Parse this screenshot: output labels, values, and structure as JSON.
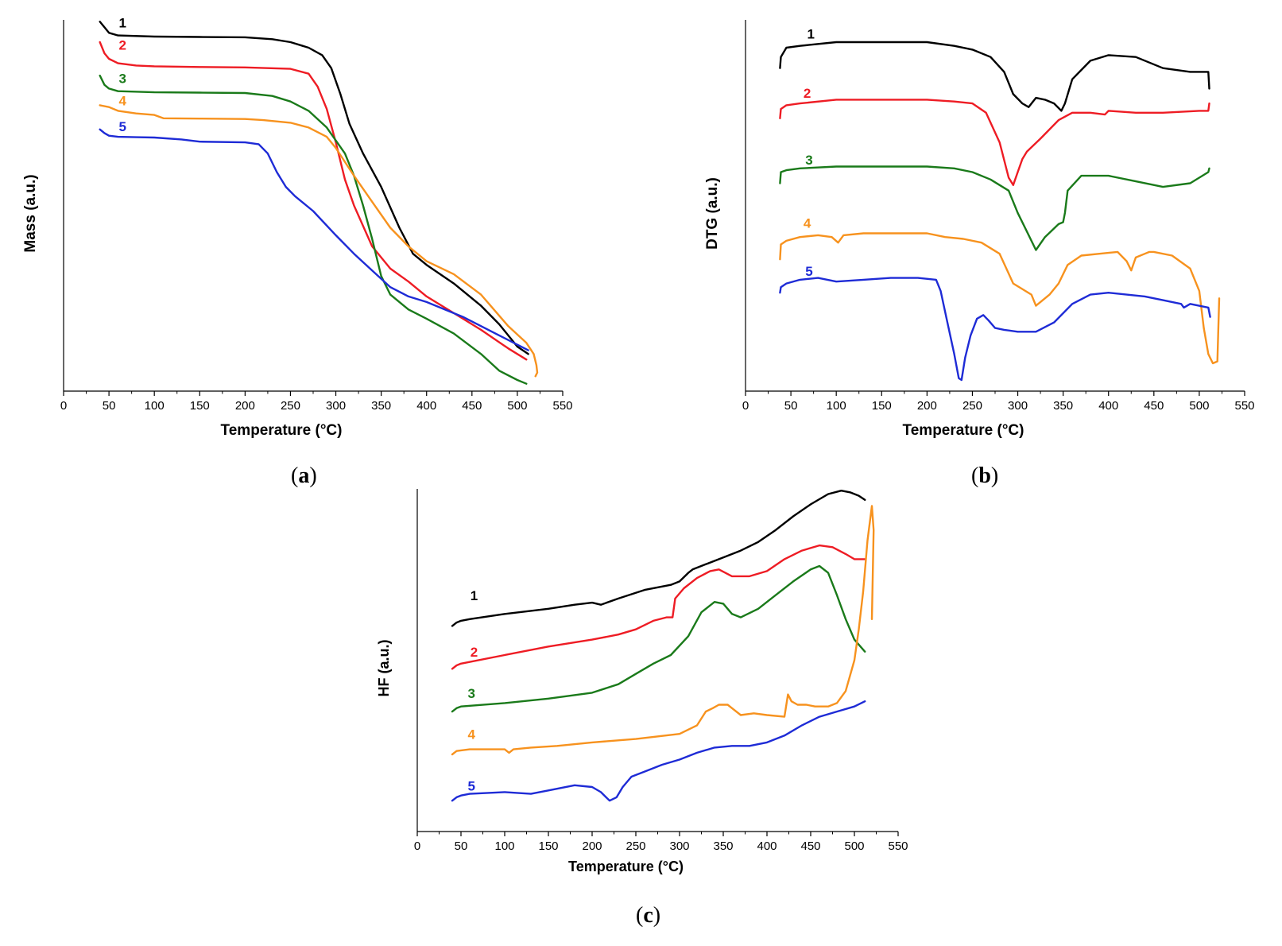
{
  "colors": {
    "1": "#000000",
    "2": "#ee1c24",
    "3": "#1a7a1a",
    "4": "#f7921e",
    "5": "#1e2bd6"
  },
  "chart_data": [
    {
      "id": "a",
      "type": "line",
      "panel_label": "a",
      "xlabel": "Temperature (°C)",
      "ylabel": "Mass (a.u.)",
      "xlim": [
        0,
        550
      ],
      "xticks": [
        0,
        50,
        100,
        150,
        200,
        250,
        300,
        350,
        400,
        450,
        500,
        550
      ],
      "ylim": [
        0,
        100
      ],
      "series": [
        {
          "name": "1",
          "label_at": [
            65,
            98
          ],
          "x": [
            40,
            45,
            50,
            60,
            100,
            150,
            200,
            230,
            250,
            270,
            285,
            295,
            305,
            315,
            330,
            350,
            370,
            385,
            400,
            430,
            460,
            480,
            500,
            512
          ],
          "y": [
            99.5,
            98,
            96.5,
            95.8,
            95.5,
            95.4,
            95.3,
            94.8,
            94,
            92.5,
            90.5,
            87,
            80,
            72,
            64,
            55,
            44,
            37,
            34,
            29,
            23,
            18,
            12,
            10
          ]
        },
        {
          "name": "2",
          "label_at": [
            65,
            92
          ],
          "x": [
            40,
            45,
            50,
            60,
            80,
            100,
            150,
            200,
            250,
            270,
            280,
            290,
            300,
            310,
            320,
            340,
            360,
            380,
            400,
            430,
            460,
            490,
            510
          ],
          "y": [
            94,
            91,
            89.5,
            88.3,
            87.7,
            87.5,
            87.3,
            87.2,
            86.8,
            85.5,
            82,
            76,
            67,
            57,
            50,
            39,
            33,
            29.5,
            25.5,
            21,
            16.5,
            11.5,
            8.5
          ]
        },
        {
          "name": "3",
          "label_at": [
            65,
            83
          ],
          "x": [
            40,
            45,
            50,
            60,
            100,
            150,
            200,
            230,
            250,
            270,
            290,
            310,
            320,
            330,
            340,
            350,
            360,
            380,
            400,
            430,
            460,
            480,
            500,
            510
          ],
          "y": [
            85,
            82.5,
            81.5,
            80.8,
            80.5,
            80.4,
            80.3,
            79.5,
            78,
            75.5,
            71,
            64,
            58,
            50,
            41,
            31,
            26,
            22,
            19.5,
            15.5,
            10,
            5.5,
            3,
            2
          ]
        },
        {
          "name": "4",
          "label_at": [
            65,
            77
          ],
          "x": [
            40,
            50,
            60,
            80,
            100,
            110,
            150,
            200,
            220,
            250,
            270,
            290,
            300,
            320,
            340,
            360,
            380,
            400,
            430,
            460,
            490,
            510,
            518,
            521,
            522,
            520
          ],
          "y": [
            77,
            76.5,
            75.5,
            74.8,
            74.4,
            73.5,
            73.4,
            73.3,
            73,
            72.3,
            71,
            68.5,
            65.5,
            58,
            51,
            44,
            39,
            35,
            31.5,
            26,
            17.5,
            13,
            10,
            7,
            5,
            4
          ]
        },
        {
          "name": "5",
          "label_at": [
            65,
            70
          ],
          "x": [
            40,
            45,
            50,
            60,
            80,
            100,
            130,
            150,
            200,
            215,
            225,
            235,
            245,
            255,
            275,
            300,
            320,
            340,
            360,
            380,
            400,
            440,
            480,
            512
          ],
          "y": [
            70.5,
            69.5,
            68.8,
            68.5,
            68.4,
            68.3,
            67.8,
            67.2,
            67,
            66.5,
            64,
            59,
            55,
            52.5,
            48.5,
            42,
            37,
            32.5,
            28,
            25.5,
            24,
            20,
            15,
            11
          ]
        }
      ]
    },
    {
      "id": "b",
      "type": "line",
      "panel_label": "b",
      "xlabel": "Temperature (°C)",
      "ylabel": "DTG (a.u.)",
      "xlim": [
        0,
        550
      ],
      "xticks": [
        0,
        50,
        100,
        150,
        200,
        250,
        300,
        350,
        400,
        450,
        500,
        550
      ],
      "ylim": [
        0,
        100
      ],
      "series": [
        {
          "name": "1",
          "label_at": [
            72,
            95
          ],
          "x": [
            38,
            39,
            45,
            60,
            100,
            150,
            200,
            230,
            250,
            270,
            285,
            295,
            305,
            312,
            320,
            330,
            340,
            348,
            352,
            360,
            380,
            400,
            430,
            460,
            490,
            510,
            511
          ],
          "y": [
            87,
            90,
            92.5,
            93,
            94,
            94,
            94,
            93,
            92,
            90,
            86,
            80,
            77.5,
            76.5,
            79,
            78.5,
            77.5,
            75.5,
            77.5,
            84,
            89,
            90.5,
            90,
            87,
            86,
            86,
            81.5
          ]
        },
        {
          "name": "2",
          "label_at": [
            68,
            79
          ],
          "x": [
            38,
            39,
            45,
            60,
            100,
            150,
            200,
            230,
            250,
            265,
            280,
            290,
            295,
            300,
            305,
            310,
            325,
            345,
            360,
            380,
            396,
            400,
            430,
            460,
            500,
            510,
            511
          ],
          "y": [
            73.5,
            76,
            77,
            77.5,
            78.5,
            78.5,
            78.5,
            78,
            77.5,
            75,
            67,
            57.5,
            55.5,
            59,
            62.5,
            64.5,
            68,
            73,
            75,
            75,
            74.5,
            75.5,
            75,
            75,
            75.5,
            75.5,
            77.5
          ]
        },
        {
          "name": "3",
          "label_at": [
            70,
            61
          ],
          "x": [
            38,
            39,
            45,
            60,
            100,
            150,
            200,
            230,
            250,
            270,
            290,
            300,
            310,
            320,
            330,
            345,
            350,
            352,
            355,
            370,
            400,
            430,
            460,
            490,
            510,
            511
          ],
          "y": [
            56,
            59,
            59.5,
            60,
            60.5,
            60.5,
            60.5,
            60,
            59,
            57,
            54,
            48,
            43,
            38,
            41.5,
            45,
            45.5,
            48,
            54,
            58,
            58,
            56.5,
            55,
            56,
            59,
            60
          ]
        },
        {
          "name": "4",
          "label_at": [
            68,
            44
          ],
          "x": [
            38,
            39,
            45,
            60,
            80,
            95,
            102,
            108,
            130,
            160,
            200,
            220,
            240,
            260,
            280,
            295,
            305,
            315,
            320,
            325,
            335,
            345,
            355,
            370,
            390,
            410,
            420,
            425,
            430,
            440,
            445,
            450,
            470,
            490,
            500,
            505,
            510,
            515,
            520,
            522
          ],
          "y": [
            35.5,
            39.5,
            40.5,
            41.5,
            42,
            41.5,
            40,
            42,
            42.5,
            42.5,
            42.5,
            41.5,
            41,
            40,
            37,
            29,
            27.5,
            26,
            23,
            24,
            26,
            29,
            34,
            36.5,
            37,
            37.5,
            35,
            32.5,
            36,
            37,
            37.5,
            37.5,
            36.5,
            33,
            27,
            17,
            10,
            7.5,
            8,
            25
          ]
        },
        {
          "name": "5",
          "label_at": [
            70,
            31
          ],
          "x": [
            38,
            39,
            45,
            60,
            80,
            100,
            130,
            160,
            190,
            210,
            215,
            222,
            230,
            235,
            238,
            242,
            248,
            255,
            262,
            268,
            275,
            285,
            300,
            320,
            340,
            360,
            380,
            400,
            420,
            440,
            460,
            480,
            483,
            490,
            510,
            512
          ],
          "y": [
            26.5,
            28,
            29,
            30,
            30.5,
            29.5,
            30,
            30.5,
            30.5,
            30,
            27,
            19,
            10,
            3.5,
            3,
            9,
            15,
            19.5,
            20.5,
            19,
            17,
            16.5,
            16,
            16,
            18.5,
            23.5,
            26,
            26.5,
            26,
            25.5,
            24.5,
            23.5,
            22.5,
            23.5,
            22.5,
            20
          ]
        }
      ]
    },
    {
      "id": "c",
      "type": "line",
      "panel_label": "c",
      "xlabel": "Temperature (°C)",
      "ylabel": "HF (a.u.)",
      "xlim": [
        0,
        550
      ],
      "xticks": [
        0,
        50,
        100,
        150,
        200,
        250,
        300,
        350,
        400,
        450,
        500,
        550
      ],
      "ylim": [
        0,
        100
      ],
      "series": [
        {
          "name": "1",
          "label_at": [
            65,
            67.5
          ],
          "x": [
            40,
            45,
            50,
            60,
            100,
            150,
            180,
            200,
            210,
            230,
            260,
            290,
            300,
            310,
            315,
            330,
            350,
            370,
            390,
            410,
            430,
            450,
            470,
            485,
            495,
            505,
            512
          ],
          "y": [
            60,
            61,
            61.5,
            62,
            63.5,
            65,
            66.2,
            66.8,
            66.2,
            68,
            70.5,
            72,
            73,
            75.5,
            76.5,
            78,
            80,
            82,
            84.5,
            88,
            92,
            95.5,
            98.5,
            99.5,
            99,
            98,
            96.8
          ]
        },
        {
          "name": "2",
          "label_at": [
            65,
            51
          ],
          "x": [
            40,
            45,
            50,
            100,
            150,
            200,
            230,
            250,
            270,
            285,
            292,
            295,
            305,
            320,
            335,
            345,
            360,
            380,
            400,
            420,
            440,
            460,
            475,
            490,
            500,
            512
          ],
          "y": [
            47.5,
            48.5,
            49,
            51.5,
            54,
            56,
            57.5,
            59,
            61.5,
            62.5,
            62.5,
            68,
            71,
            74,
            76,
            76.5,
            74.5,
            74.5,
            76,
            79.5,
            82,
            83.5,
            83,
            81,
            79.5,
            79.5
          ]
        },
        {
          "name": "3",
          "label_at": [
            62,
            39
          ],
          "x": [
            40,
            45,
            50,
            100,
            150,
            200,
            230,
            250,
            270,
            290,
            310,
            325,
            340,
            350,
            360,
            370,
            390,
            410,
            430,
            450,
            460,
            470,
            480,
            490,
            500,
            512
          ],
          "y": [
            35,
            36,
            36.5,
            37.5,
            38.8,
            40.5,
            43,
            46,
            49,
            51.5,
            57,
            64,
            67,
            66.5,
            63.5,
            62.5,
            65,
            69,
            73,
            76.5,
            77.5,
            75.5,
            69,
            62,
            56,
            52.5
          ]
        },
        {
          "name": "4",
          "label_at": [
            62,
            27
          ],
          "x": [
            40,
            45,
            60,
            100,
            105,
            110,
            130,
            160,
            200,
            250,
            300,
            320,
            330,
            338,
            345,
            355,
            370,
            385,
            400,
            420,
            424,
            428,
            435,
            445,
            455,
            470,
            480,
            490,
            500,
            505,
            510,
            515,
            520,
            522,
            520
          ],
          "y": [
            22.5,
            23.5,
            24,
            24,
            23,
            24,
            24.5,
            25,
            26,
            27,
            28.5,
            31,
            35,
            36,
            37,
            37,
            34,
            34.5,
            34,
            33.5,
            40,
            38,
            37,
            37,
            36.5,
            36.5,
            37.5,
            41,
            50,
            59,
            70,
            85,
            95,
            88,
            62
          ]
        },
        {
          "name": "5",
          "label_at": [
            62,
            12
          ],
          "x": [
            40,
            45,
            50,
            60,
            100,
            130,
            150,
            180,
            200,
            210,
            220,
            228,
            235,
            245,
            260,
            280,
            300,
            320,
            340,
            360,
            380,
            400,
            420,
            440,
            460,
            480,
            500,
            512
          ],
          "y": [
            9,
            10,
            10.5,
            11,
            11.5,
            11,
            12,
            13.5,
            13,
            11.5,
            9,
            10,
            13,
            16,
            17.5,
            19.5,
            21,
            23,
            24.5,
            25,
            25,
            26,
            28,
            31,
            33.5,
            35,
            36.5,
            38
          ]
        }
      ]
    }
  ]
}
